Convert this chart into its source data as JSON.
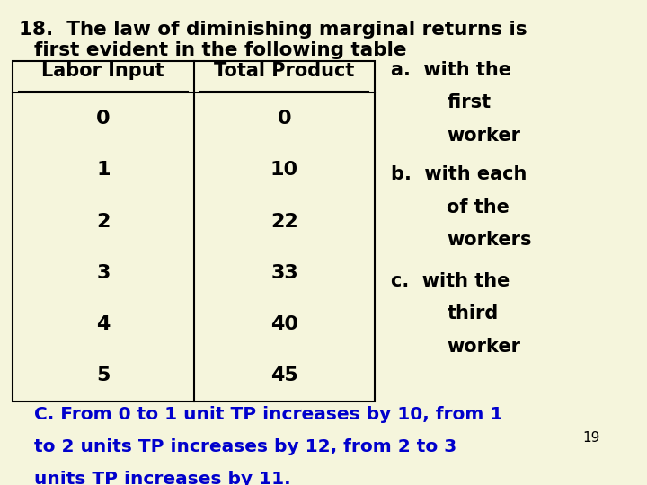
{
  "background_color": "#f5f5dc",
  "title_line1": "18.  The law of diminishing marginal returns is",
  "title_line2": "first evident in the following table",
  "title_color": "#000000",
  "title_fontsize": 15.5,
  "labor_input_header": "Labor Input",
  "total_product_header": "Total Product",
  "labor_values": [
    "0",
    "1",
    "2",
    "3",
    "4",
    "5"
  ],
  "total_product_values": [
    "0",
    "10",
    "22",
    "33",
    "40",
    "45"
  ],
  "table_header_fontsize": 15,
  "table_data_fontsize": 16,
  "table_text_color": "#000000",
  "table_border_color": "#000000",
  "options_a": [
    "a.  with the",
    "first",
    "worker"
  ],
  "options_b": [
    "b.  with each",
    "of the",
    "workers"
  ],
  "options_c": [
    "c.  with the",
    "third",
    "worker"
  ],
  "options_fontsize": 15,
  "options_color": "#000000",
  "answer_line1": "C. From 0 to 1 unit TP increases by 10, from 1",
  "answer_line2": "to 2 units TP increases by 12, from 2 to 3",
  "answer_line3": "units TP increases by 11.",
  "answer_color": "#0000cc",
  "answer_fontsize": 14.5,
  "page_number": "19",
  "page_number_color": "#000000",
  "page_number_fontsize": 11
}
